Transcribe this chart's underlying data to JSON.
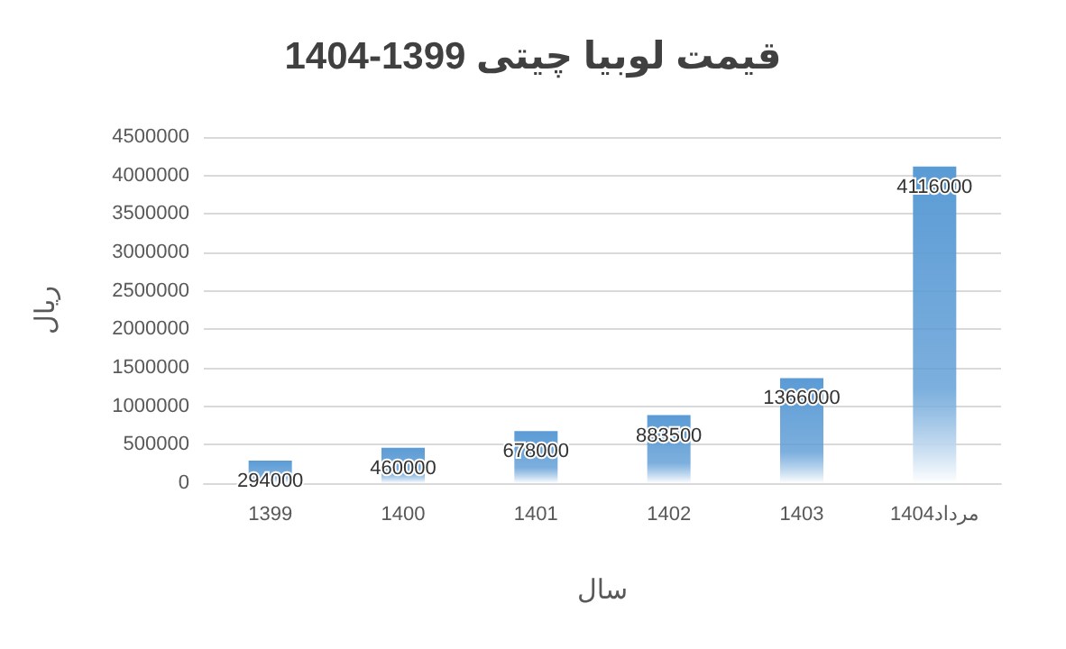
{
  "chart_data": {
    "type": "bar",
    "title": "قیمت لوبیا چیتی 1399-1404",
    "xlabel": "سال",
    "ylabel": "ریال",
    "categories": [
      "1399",
      "1400",
      "1401",
      "1402",
      "1403",
      "مرداد1404"
    ],
    "values": [
      294000,
      460000,
      678000,
      883500,
      1366000,
      4116000
    ],
    "color": "#5b9bd5",
    "ylim": [
      0,
      4500000
    ],
    "yticks": [
      0,
      500000,
      1000000,
      1500000,
      2000000,
      2500000,
      3000000,
      3500000,
      4000000,
      4500000
    ],
    "grid": "y",
    "data_labels": true
  }
}
